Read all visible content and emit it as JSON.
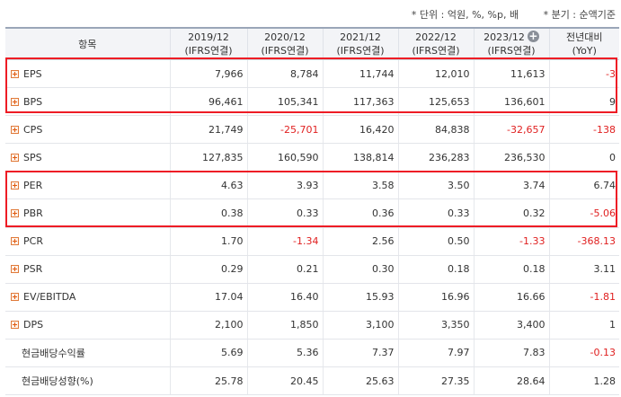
{
  "notes": {
    "unit": "* 단위 : 억원, %, %p, 배",
    "basis": "* 분기 : 순액기준"
  },
  "header": {
    "item": "항목",
    "periods": [
      {
        "year": "2019/12",
        "std": "(IFRS연결)"
      },
      {
        "year": "2020/12",
        "std": "(IFRS연결)"
      },
      {
        "year": "2021/12",
        "std": "(IFRS연결)"
      },
      {
        "year": "2022/12",
        "std": "(IFRS연결)"
      },
      {
        "year": "2023/12",
        "std": "(IFRS연결)"
      }
    ],
    "add_icon": "+",
    "yoy": {
      "line1": "전년대비",
      "line2": "(YoY)"
    }
  },
  "rows": [
    {
      "label": "EPS",
      "icon": "expand-icon",
      "values": [
        "7,966",
        "8,784",
        "11,744",
        "12,010",
        "11,613"
      ],
      "yoy": "-3"
    },
    {
      "label": "BPS",
      "icon": "expand-icon",
      "values": [
        "96,461",
        "105,341",
        "117,363",
        "125,653",
        "136,601"
      ],
      "yoy": "9"
    },
    {
      "label": "CPS",
      "icon": "expand-icon",
      "values": [
        "21,749",
        "-25,701",
        "16,420",
        "84,838",
        "-32,657"
      ],
      "yoy": "-138"
    },
    {
      "label": "SPS",
      "icon": "expand-icon",
      "values": [
        "127,835",
        "160,590",
        "138,814",
        "236,283",
        "236,530"
      ],
      "yoy": "0"
    },
    {
      "label": "PER",
      "icon": "expand-icon",
      "values": [
        "4.63",
        "3.93",
        "3.58",
        "3.50",
        "3.74"
      ],
      "yoy": "6.74"
    },
    {
      "label": "PBR",
      "icon": "expand-icon",
      "values": [
        "0.38",
        "0.33",
        "0.36",
        "0.33",
        "0.32"
      ],
      "yoy": "-5.06"
    },
    {
      "label": "PCR",
      "icon": "expand-icon",
      "values": [
        "1.70",
        "-1.34",
        "2.56",
        "0.50",
        "-1.33"
      ],
      "yoy": "-368.13"
    },
    {
      "label": "PSR",
      "icon": "expand-icon",
      "values": [
        "0.29",
        "0.21",
        "0.30",
        "0.18",
        "0.18"
      ],
      "yoy": "3.11"
    },
    {
      "label": "EV/EBITDA",
      "icon": "expand-icon",
      "values": [
        "17.04",
        "16.40",
        "15.93",
        "16.96",
        "16.66"
      ],
      "yoy": "-1.81"
    },
    {
      "label": "DPS",
      "icon": "expand-icon",
      "values": [
        "2,100",
        "1,850",
        "3,100",
        "3,350",
        "3,400"
      ],
      "yoy": "1"
    },
    {
      "label": "현금배당수익률",
      "icon": "",
      "values": [
        "5.69",
        "5.36",
        "7.37",
        "7.97",
        "7.83"
      ],
      "yoy": "-0.13"
    },
    {
      "label": "현금배당성향(%)",
      "icon": "",
      "values": [
        "25.78",
        "20.45",
        "25.63",
        "27.35",
        "28.64"
      ],
      "yoy": "1.28"
    }
  ],
  "colors": {
    "negative": "#e02020",
    "highlight": "#ee1c25",
    "header_bg": "#f3f4f7"
  }
}
